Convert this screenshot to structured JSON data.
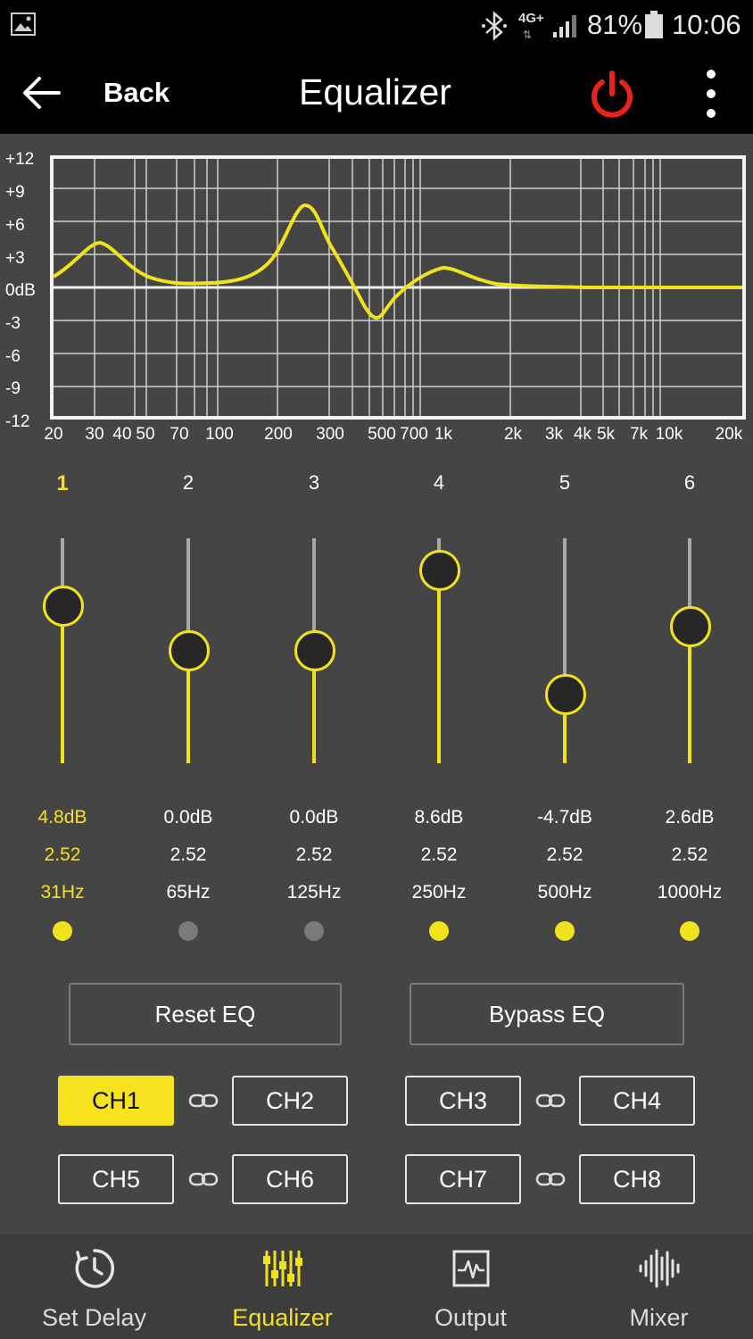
{
  "status": {
    "network": "4G+",
    "battery": "81%",
    "time": "10:06"
  },
  "header": {
    "back_label": "Back",
    "title": "Equalizer"
  },
  "graph": {
    "y_labels": [
      "+12",
      "+9",
      "+6",
      "+3",
      "0dB",
      "-3",
      "-6",
      "-9",
      "-12"
    ],
    "x_labels": [
      "20",
      "30",
      "40",
      "50",
      "70",
      "100",
      "200",
      "300",
      "500",
      "700",
      "1k",
      "2k",
      "3k",
      "4k",
      "5k",
      "7k",
      "10k",
      "20k"
    ]
  },
  "bands": [
    {
      "num": "1",
      "gain": "4.8dB",
      "q": "2.52",
      "freq": "31Hz",
      "gain_db": 4.8,
      "enabled": true,
      "selected": true
    },
    {
      "num": "2",
      "gain": "0.0dB",
      "q": "2.52",
      "freq": "65Hz",
      "gain_db": 0.0,
      "enabled": false,
      "selected": false
    },
    {
      "num": "3",
      "gain": "0.0dB",
      "q": "2.52",
      "freq": "125Hz",
      "gain_db": 0.0,
      "enabled": false,
      "selected": false
    },
    {
      "num": "4",
      "gain": "8.6dB",
      "q": "2.52",
      "freq": "250Hz",
      "gain_db": 8.6,
      "enabled": true,
      "selected": false
    },
    {
      "num": "5",
      "gain": "-4.7dB",
      "q": "2.52",
      "freq": "500Hz",
      "gain_db": -4.7,
      "enabled": true,
      "selected": false
    },
    {
      "num": "6",
      "gain": "2.6dB",
      "q": "2.52",
      "freq": "1000Hz",
      "gain_db": 2.6,
      "enabled": true,
      "selected": false
    }
  ],
  "actions": {
    "reset": "Reset EQ",
    "bypass": "Bypass EQ"
  },
  "channels": [
    "CH1",
    "CH2",
    "CH3",
    "CH4",
    "CH5",
    "CH6",
    "CH7",
    "CH8"
  ],
  "selected_channel": "CH1",
  "nav": [
    {
      "label": "Set Delay",
      "icon": "clock-icon"
    },
    {
      "label": "Equalizer",
      "icon": "equalizer-icon",
      "active": true
    },
    {
      "label": "Output",
      "icon": "waveform-box-icon"
    },
    {
      "label": "Mixer",
      "icon": "soundwave-icon"
    }
  ],
  "colors": {
    "accent": "#f1e21e",
    "power": "#e8221c",
    "background": "#464545"
  }
}
